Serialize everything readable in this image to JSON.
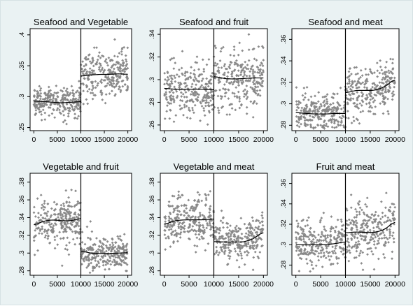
{
  "figure": {
    "background_color": "#eaf2f3",
    "marker_color": "#8c8c8c",
    "line_color": "#000000"
  },
  "chart_data": [
    {
      "type": "scatter",
      "title": "Seafood and Vegetable",
      "xlim": [
        -800,
        20800
      ],
      "ylim": [
        0.245,
        0.41
      ],
      "xticks": [
        0,
        5000,
        10000,
        15000,
        20000
      ],
      "yticks": [
        0.25,
        0.3,
        0.35,
        0.4
      ],
      "ytick_labels": [
        ".25",
        ".3",
        ".35",
        ".4"
      ],
      "cutoff_x": 10000,
      "scatter": {
        "left_mean": 0.292,
        "left_spread": 0.012,
        "right_mean": 0.335,
        "right_spread": 0.02,
        "n_left": 260,
        "n_right": 260
      },
      "smooth": {
        "left": [
          [
            0,
            0.293
          ],
          [
            2000,
            0.292
          ],
          [
            4000,
            0.291
          ],
          [
            6000,
            0.29
          ],
          [
            8000,
            0.291
          ],
          [
            10000,
            0.292
          ]
        ],
        "right": [
          [
            10000,
            0.333
          ],
          [
            12000,
            0.335
          ],
          [
            14000,
            0.336
          ],
          [
            16000,
            0.336
          ],
          [
            18000,
            0.337
          ],
          [
            20000,
            0.336
          ]
        ]
      }
    },
    {
      "type": "scatter",
      "title": "Seafood and fruit",
      "xlim": [
        -800,
        20800
      ],
      "ylim": [
        0.255,
        0.345
      ],
      "xticks": [
        0,
        5000,
        10000,
        15000,
        20000
      ],
      "yticks": [
        0.26,
        0.28,
        0.3,
        0.32,
        0.34
      ],
      "ytick_labels": [
        ".26",
        ".28",
        ".3",
        ".32",
        ".34"
      ],
      "cutoff_x": 10000,
      "scatter": {
        "left_mean": 0.291,
        "left_spread": 0.012,
        "right_mean": 0.301,
        "right_spread": 0.014,
        "n_left": 260,
        "n_right": 260
      },
      "smooth": {
        "left": [
          [
            0,
            0.2925
          ],
          [
            2000,
            0.2915
          ],
          [
            4000,
            0.2915
          ],
          [
            6000,
            0.2915
          ],
          [
            8000,
            0.2915
          ],
          [
            10000,
            0.291
          ]
        ],
        "right": [
          [
            10000,
            0.303
          ],
          [
            12000,
            0.301
          ],
          [
            14000,
            0.3005
          ],
          [
            16000,
            0.301
          ],
          [
            18000,
            0.3015
          ],
          [
            20000,
            0.3015
          ]
        ]
      }
    },
    {
      "type": "scatter",
      "title": "Seafood and meat",
      "xlim": [
        -800,
        20800
      ],
      "ylim": [
        0.275,
        0.37
      ],
      "xticks": [
        0,
        5000,
        10000,
        15000,
        20000
      ],
      "yticks": [
        0.28,
        0.3,
        0.32,
        0.34,
        0.36
      ],
      "ytick_labels": [
        ".28",
        ".3",
        ".32",
        ".34",
        ".36"
      ],
      "cutoff_x": 10000,
      "scatter": {
        "left_mean": 0.291,
        "left_spread": 0.009,
        "right_mean": 0.313,
        "right_spread": 0.012,
        "n_left": 260,
        "n_right": 260
      },
      "smooth": {
        "left": [
          [
            0,
            0.292
          ],
          [
            2000,
            0.291
          ],
          [
            4000,
            0.2905
          ],
          [
            6000,
            0.2905
          ],
          [
            8000,
            0.291
          ],
          [
            10000,
            0.291
          ]
        ],
        "right": [
          [
            10000,
            0.31
          ],
          [
            12000,
            0.3125
          ],
          [
            14000,
            0.3125
          ],
          [
            16000,
            0.3125
          ],
          [
            18000,
            0.316
          ],
          [
            20000,
            0.3235
          ]
        ]
      }
    },
    {
      "type": "scatter",
      "title": "Vegetable and fruit",
      "xlim": [
        -800,
        20800
      ],
      "ylim": [
        0.275,
        0.39
      ],
      "xticks": [
        0,
        5000,
        10000,
        15000,
        20000
      ],
      "yticks": [
        0.28,
        0.3,
        0.32,
        0.34,
        0.36,
        0.38
      ],
      "ytick_labels": [
        ".28",
        ".3",
        ".32",
        ".34",
        ".36",
        ".38"
      ],
      "cutoff_x": 10000,
      "scatter": {
        "left_mean": 0.336,
        "left_spread": 0.014,
        "right_mean": 0.301,
        "right_spread": 0.01,
        "n_left": 260,
        "n_right": 260
      },
      "smooth": {
        "left": [
          [
            0,
            0.331
          ],
          [
            2000,
            0.336
          ],
          [
            4000,
            0.3375
          ],
          [
            6000,
            0.3365
          ],
          [
            8000,
            0.3365
          ],
          [
            10000,
            0.3395
          ]
        ],
        "right": [
          [
            10000,
            0.3025
          ],
          [
            12000,
            0.3
          ],
          [
            14000,
            0.2995
          ],
          [
            16000,
            0.2995
          ],
          [
            18000,
            0.3
          ],
          [
            20000,
            0.3005
          ]
        ]
      }
    },
    {
      "type": "scatter",
      "title": "Vegetable and meat",
      "xlim": [
        -800,
        20800
      ],
      "ylim": [
        0.275,
        0.39
      ],
      "xticks": [
        0,
        5000,
        10000,
        15000,
        20000
      ],
      "yticks": [
        0.28,
        0.3,
        0.32,
        0.34,
        0.36,
        0.38
      ],
      "ytick_labels": [
        ".28",
        ".3",
        ".32",
        ".34",
        ".36",
        ".38"
      ],
      "cutoff_x": 10000,
      "scatter": {
        "left_mean": 0.336,
        "left_spread": 0.014,
        "right_mean": 0.312,
        "right_spread": 0.012,
        "n_left": 260,
        "n_right": 260
      },
      "smooth": {
        "left": [
          [
            0,
            0.332
          ],
          [
            2000,
            0.3365
          ],
          [
            4000,
            0.3375
          ],
          [
            6000,
            0.3375
          ],
          [
            8000,
            0.3375
          ],
          [
            10000,
            0.3385
          ]
        ],
        "right": [
          [
            10000,
            0.313
          ],
          [
            12000,
            0.3125
          ],
          [
            14000,
            0.3125
          ],
          [
            16000,
            0.3125
          ],
          [
            18000,
            0.316
          ],
          [
            20000,
            0.3245
          ]
        ]
      }
    },
    {
      "type": "scatter",
      "title": "Fruit and meat",
      "xlim": [
        -800,
        20800
      ],
      "ylim": [
        0.27,
        0.37
      ],
      "xticks": [
        0,
        5000,
        10000,
        15000,
        20000
      ],
      "yticks": [
        0.28,
        0.3,
        0.32,
        0.34,
        0.36
      ],
      "ytick_labels": [
        ".28",
        ".3",
        ".32",
        ".34",
        ".36"
      ],
      "cutoff_x": 10000,
      "scatter": {
        "left_mean": 0.301,
        "left_spread": 0.012,
        "right_mean": 0.313,
        "right_spread": 0.013,
        "n_left": 260,
        "n_right": 260
      },
      "smooth": {
        "left": [
          [
            0,
            0.3
          ],
          [
            2000,
            0.3
          ],
          [
            4000,
            0.3
          ],
          [
            6000,
            0.3
          ],
          [
            8000,
            0.301
          ],
          [
            10000,
            0.303
          ]
        ],
        "right": [
          [
            10000,
            0.3115
          ],
          [
            12000,
            0.3125
          ],
          [
            14000,
            0.312
          ],
          [
            16000,
            0.312
          ],
          [
            18000,
            0.315
          ],
          [
            20000,
            0.3235
          ]
        ]
      }
    }
  ]
}
